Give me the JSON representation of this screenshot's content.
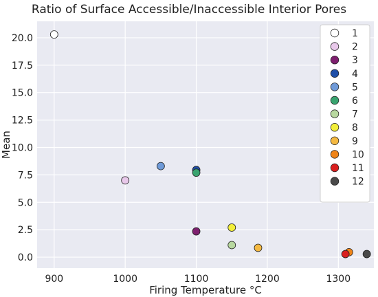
{
  "chart_data": {
    "type": "scatter",
    "title": "Ratio of Surface Accessible/Inaccessible Interior Pores",
    "xlabel": "Firing Temperature °C",
    "ylabel": "Mean",
    "x_ticks": [
      900,
      1000,
      1100,
      1200,
      1300
    ],
    "x_tick_labels": [
      "900",
      "1000",
      "1100",
      "1200",
      "1300"
    ],
    "y_ticks": [
      0.0,
      2.5,
      5.0,
      7.5,
      10.0,
      12.5,
      15.0,
      17.5,
      20.0
    ],
    "y_tick_labels": [
      "0.0",
      "2.5",
      "5.0",
      "7.5",
      "10.0",
      "12.5",
      "15.0",
      "17.5",
      "20.0"
    ],
    "xlim": [
      876,
      1350
    ],
    "ylim": [
      -1.0,
      21.5
    ],
    "grid": true,
    "legend_position": "top-right",
    "series": [
      {
        "name": "1",
        "x": [
          900
        ],
        "y": [
          20.3
        ],
        "color": "#ffffff"
      },
      {
        "name": "2",
        "x": [
          1000
        ],
        "y": [
          7.0
        ],
        "color": "#e8c8ea"
      },
      {
        "name": "3",
        "x": [
          1100
        ],
        "y": [
          2.35
        ],
        "color": "#7e1f6f"
      },
      {
        "name": "4",
        "x": [
          1100
        ],
        "y": [
          7.95
        ],
        "color": "#1f4fa8"
      },
      {
        "name": "5",
        "x": [
          1050
        ],
        "y": [
          8.3
        ],
        "color": "#6f9ad8"
      },
      {
        "name": "6",
        "x": [
          1100
        ],
        "y": [
          7.7
        ],
        "color": "#39a36f"
      },
      {
        "name": "7",
        "x": [
          1150
        ],
        "y": [
          1.1
        ],
        "color": "#b8d8a0"
      },
      {
        "name": "8",
        "x": [
          1150
        ],
        "y": [
          2.7
        ],
        "color": "#f2ee3a"
      },
      {
        "name": "9",
        "x": [
          1187
        ],
        "y": [
          0.85
        ],
        "color": "#f4b942"
      },
      {
        "name": "10",
        "x": [
          1315
        ],
        "y": [
          0.45
        ],
        "color": "#ef8418"
      },
      {
        "name": "11",
        "x": [
          1310
        ],
        "y": [
          0.28
        ],
        "color": "#d91f1f"
      },
      {
        "name": "12",
        "x": [
          1340
        ],
        "y": [
          0.28
        ],
        "color": "#4a4a4a"
      }
    ]
  }
}
